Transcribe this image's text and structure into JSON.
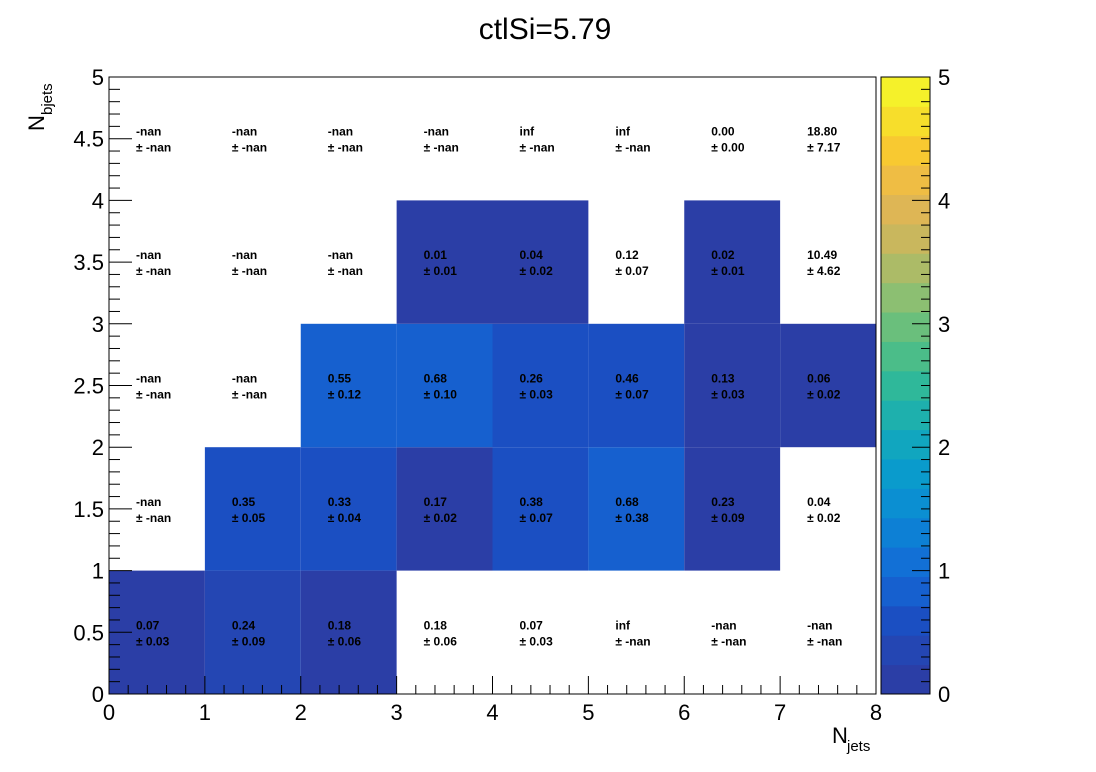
{
  "chart_data": {
    "type": "heatmap",
    "title": "ctlSi=5.79",
    "xlabel_main": "N",
    "xlabel_sub": "jets",
    "ylabel_main": "N",
    "ylabel_sub": "bjets",
    "xlim": [
      0,
      8
    ],
    "ylim": [
      0,
      5
    ],
    "x_ticks": [
      "0",
      "1",
      "2",
      "3",
      "4",
      "5",
      "6",
      "7",
      "8"
    ],
    "y_ticks": [
      "0",
      "0.5",
      "1",
      "1.5",
      "2",
      "2.5",
      "3",
      "3.5",
      "4",
      "4.5",
      "5"
    ],
    "zlim": [
      0,
      5
    ],
    "z_ticks": [
      "0",
      "1",
      "2",
      "3",
      "4",
      "5"
    ],
    "colorscale": [
      "#2b3ea6",
      "#2446b3",
      "#1b4fc2",
      "#1660cf",
      "#1270d6",
      "#0d80d5",
      "#0b8fd2",
      "#0a9bcc",
      "#11a6bf",
      "#1eb0ad",
      "#2fb89a",
      "#4bbd89",
      "#6abf7c",
      "#8cbf72",
      "#acbb67",
      "#c9b75d",
      "#deb655",
      "#efbd44",
      "#f8c931",
      "#f7de2b",
      "#f5f12a"
    ],
    "rows": [
      {
        "y": "0-1",
        "cells": [
          {
            "value": "0.07",
            "error": "± 0.03",
            "fill": "#2b3ea6"
          },
          {
            "value": "0.24",
            "error": "± 0.09",
            "fill": "#2446b3"
          },
          {
            "value": "0.18",
            "error": "± 0.06",
            "fill": "#2b3ea6"
          },
          {
            "value": "0.18",
            "error": "± 0.06",
            "fill": ""
          },
          {
            "value": "0.07",
            "error": "± 0.03",
            "fill": ""
          },
          {
            "value": "inf",
            "error": "± -nan",
            "fill": ""
          },
          {
            "value": "-nan",
            "error": "± -nan",
            "fill": ""
          },
          {
            "value": "-nan",
            "error": "± -nan",
            "fill": ""
          }
        ]
      },
      {
        "y": "1-2",
        "cells": [
          {
            "value": "-nan",
            "error": "± -nan",
            "fill": ""
          },
          {
            "value": "0.35",
            "error": "± 0.05",
            "fill": "#1b4fc2"
          },
          {
            "value": "0.33",
            "error": "± 0.04",
            "fill": "#1b4fc2"
          },
          {
            "value": "0.17",
            "error": "± 0.02",
            "fill": "#2b3ea6"
          },
          {
            "value": "0.38",
            "error": "± 0.07",
            "fill": "#1b4fc2"
          },
          {
            "value": "0.68",
            "error": "± 0.38",
            "fill": "#1660cf"
          },
          {
            "value": "0.23",
            "error": "± 0.09",
            "fill": "#2b3ea6"
          },
          {
            "value": "0.04",
            "error": "± 0.02",
            "fill": ""
          }
        ]
      },
      {
        "y": "2-3",
        "cells": [
          {
            "value": "-nan",
            "error": "± -nan",
            "fill": ""
          },
          {
            "value": "-nan",
            "error": "± -nan",
            "fill": ""
          },
          {
            "value": "0.55",
            "error": "± 0.12",
            "fill": "#1660cf"
          },
          {
            "value": "0.68",
            "error": "± 0.10",
            "fill": "#1660cf"
          },
          {
            "value": "0.26",
            "error": "± 0.03",
            "fill": "#1b4fc2"
          },
          {
            "value": "0.46",
            "error": "± 0.07",
            "fill": "#1b4fc2"
          },
          {
            "value": "0.13",
            "error": "± 0.03",
            "fill": "#2b3ea6"
          },
          {
            "value": "0.06",
            "error": "± 0.02",
            "fill": "#2b3ea6"
          }
        ]
      },
      {
        "y": "3-4",
        "cells": [
          {
            "value": "-nan",
            "error": "± -nan",
            "fill": ""
          },
          {
            "value": "-nan",
            "error": "± -nan",
            "fill": ""
          },
          {
            "value": "-nan",
            "error": "± -nan",
            "fill": ""
          },
          {
            "value": "0.01",
            "error": "± 0.01",
            "fill": "#2b3ea6"
          },
          {
            "value": "0.04",
            "error": "± 0.02",
            "fill": "#2b3ea6"
          },
          {
            "value": "0.12",
            "error": "± 0.07",
            "fill": ""
          },
          {
            "value": "0.02",
            "error": "± 0.01",
            "fill": "#2b3ea6"
          },
          {
            "value": "10.49",
            "error": "± 4.62",
            "fill": ""
          }
        ]
      },
      {
        "y": "4-5",
        "cells": [
          {
            "value": "-nan",
            "error": "± -nan",
            "fill": ""
          },
          {
            "value": "-nan",
            "error": "± -nan",
            "fill": ""
          },
          {
            "value": "-nan",
            "error": "± -nan",
            "fill": ""
          },
          {
            "value": "-nan",
            "error": "± -nan",
            "fill": ""
          },
          {
            "value": "inf",
            "error": "± -nan",
            "fill": ""
          },
          {
            "value": "inf",
            "error": "± -nan",
            "fill": ""
          },
          {
            "value": "0.00",
            "error": "± 0.00",
            "fill": ""
          },
          {
            "value": "18.80",
            "error": "± 7.17",
            "fill": ""
          }
        ]
      }
    ]
  }
}
